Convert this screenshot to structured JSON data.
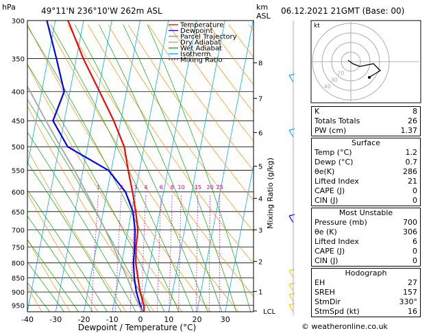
{
  "header": {
    "location": "49°11'N  236°10'W  262m  ASL",
    "datetime": "06.12.2021  21GMT  (Base: 00)",
    "hpa_unit": "hPa",
    "km_unit": "km",
    "asl_unit": "ASL"
  },
  "chart_data": {
    "type": "line",
    "xlabel": "Dewpoint / Temperature (°C)",
    "mixing_ratio_label": "Mixing Ratio (g/kg)",
    "x_ticks": [
      -40,
      -30,
      -20,
      -10,
      0,
      10,
      20,
      30
    ],
    "xlim": [
      -40,
      40
    ],
    "pressure_levels": [
      300,
      350,
      400,
      450,
      500,
      550,
      600,
      650,
      700,
      750,
      800,
      850,
      900,
      950
    ],
    "ylim": [
      300,
      975
    ],
    "y_scale": "log",
    "km_labels": [
      {
        "km": "8",
        "p": 356
      },
      {
        "km": "7",
        "p": 411
      },
      {
        "km": "6",
        "p": 472
      },
      {
        "km": "5",
        "p": 541
      },
      {
        "km": "4",
        "p": 616
      },
      {
        "km": "3",
        "p": 700
      },
      {
        "km": "2",
        "p": 795
      },
      {
        "km": "1",
        "p": 898
      },
      {
        "km": "LCL",
        "p": 972
      }
    ],
    "mixing_ratio_values": [
      "1",
      "2",
      "3",
      "4",
      "6",
      "8",
      "10",
      "15",
      "20",
      "25"
    ],
    "legend": [
      {
        "name": "Temperature",
        "color": "#ff0000",
        "style": "solid"
      },
      {
        "name": "Dewpoint",
        "color": "#0000ff",
        "style": "solid"
      },
      {
        "name": "Parcel Trajectory",
        "color": "#888888",
        "style": "solid"
      },
      {
        "name": "Dry Adiabat",
        "color": "#ff8c00",
        "style": "solid"
      },
      {
        "name": "Wet Adiabat",
        "color": "#00aa00",
        "style": "solid"
      },
      {
        "name": "Isotherm",
        "color": "#00aaff",
        "style": "solid"
      },
      {
        "name": "Mixing Ratio",
        "color": "#cc00cc",
        "style": "dotted"
      }
    ],
    "series": [
      {
        "name": "Temperature",
        "color": "#ff0000",
        "points": [
          [
            975,
            1.2
          ],
          [
            950,
            0.8
          ],
          [
            900,
            -1.5
          ],
          [
            850,
            -3.2
          ],
          [
            800,
            -5
          ],
          [
            750,
            -6
          ],
          [
            700,
            -6.5
          ],
          [
            650,
            -8.5
          ],
          [
            600,
            -11
          ],
          [
            550,
            -14
          ],
          [
            500,
            -17
          ],
          [
            450,
            -22.5
          ],
          [
            400,
            -29.5
          ],
          [
            350,
            -37.5
          ],
          [
            300,
            -45.5
          ]
        ]
      },
      {
        "name": "Dewpoint",
        "color": "#0000ff",
        "points": [
          [
            975,
            0.7
          ],
          [
            950,
            -0.5
          ],
          [
            900,
            -2.8
          ],
          [
            850,
            -4.5
          ],
          [
            800,
            -5.8
          ],
          [
            750,
            -6.5
          ],
          [
            700,
            -7.5
          ],
          [
            650,
            -9.5
          ],
          [
            600,
            -13.5
          ],
          [
            550,
            -21
          ],
          [
            500,
            -37
          ],
          [
            450,
            -44
          ],
          [
            400,
            -42
          ],
          [
            350,
            -47
          ],
          [
            300,
            -53
          ]
        ]
      },
      {
        "name": "Parcel Trajectory",
        "color": "#aaaaaa",
        "points": [
          [
            975,
            0.7
          ],
          [
            950,
            -1
          ],
          [
            900,
            -4
          ],
          [
            850,
            -7
          ],
          [
            800,
            -10.5
          ],
          [
            750,
            -14
          ],
          [
            700,
            -18
          ],
          [
            650,
            -22.5
          ],
          [
            600,
            -27.5
          ],
          [
            550,
            -33
          ],
          [
            500,
            -39.5
          ],
          [
            450,
            -46.5
          ],
          [
            400,
            -54
          ],
          [
            350,
            -63
          ],
          [
            300,
            -73
          ]
        ]
      }
    ]
  },
  "hodograph": {
    "unit_label": "kt",
    "ring_labels": [
      "20",
      "30",
      "40"
    ]
  },
  "indices": {
    "basic": [
      {
        "label": "K",
        "value": "8"
      },
      {
        "label": "Totals Totals",
        "value": "26"
      },
      {
        "label": "PW (cm)",
        "value": "1.37"
      }
    ],
    "surface": {
      "title": "Surface",
      "rows": [
        {
          "label": "Temp (°C)",
          "value": "1.2"
        },
        {
          "label": "Dewp (°C)",
          "value": "0.7"
        },
        {
          "label": "θe(K)",
          "value": "286"
        },
        {
          "label": "Lifted Index",
          "value": "21"
        },
        {
          "label": "CAPE (J)",
          "value": "0"
        },
        {
          "label": "CIN (J)",
          "value": "0"
        }
      ]
    },
    "most_unstable": {
      "title": "Most Unstable",
      "rows": [
        {
          "label": "Pressure (mb)",
          "value": "700"
        },
        {
          "label": "θe (K)",
          "value": "306"
        },
        {
          "label": "Lifted Index",
          "value": "6"
        },
        {
          "label": "CAPE (J)",
          "value": "0"
        },
        {
          "label": "CIN (J)",
          "value": "0"
        }
      ]
    },
    "hodograph": {
      "title": "Hodograph",
      "rows": [
        {
          "label": "EH",
          "value": "27"
        },
        {
          "label": "SREH",
          "value": "157"
        },
        {
          "label": "StmDir",
          "value": "330°"
        },
        {
          "label": "StmSpd (kt)",
          "value": "16"
        }
      ]
    }
  },
  "footer": {
    "credit": "© weatheronline.co.uk"
  }
}
